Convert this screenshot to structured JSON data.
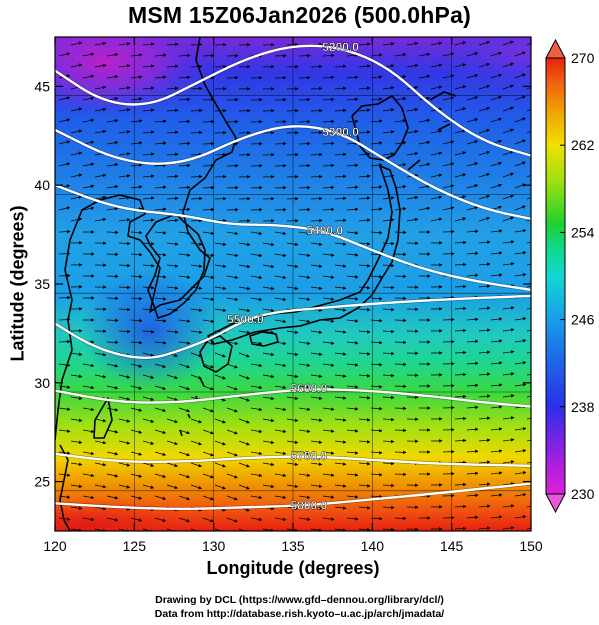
{
  "title": "MSM 15Z06Jan2026 (500.0hPa)",
  "chart_data": {
    "type": "heatmap",
    "title": "MSM 15Z06Jan2026 (500.0hPa)",
    "xlabel": "Longitude (degrees)",
    "ylabel": "Latitude  (degrees)",
    "xlim": [
      120,
      150
    ],
    "ylim": [
      22.5,
      47.5
    ],
    "x_ticks": [
      120,
      125,
      130,
      135,
      140,
      145,
      150
    ],
    "y_ticks": [
      25,
      30,
      35,
      40,
      45
    ],
    "grid": true,
    "colorbar": {
      "min": 230,
      "max": 270,
      "ticks": [
        230,
        238,
        246,
        254,
        262,
        270
      ],
      "colors": [
        "#e020d8",
        "#7a20e0",
        "#2a30e8",
        "#1e6ee8",
        "#10b8e0",
        "#10d8a8",
        "#20d030",
        "#a0e010",
        "#f0e000",
        "#f0a000",
        "#f05a10",
        "#e82010"
      ]
    },
    "contours": [
      {
        "label": "5200.0",
        "points": [
          [
            120,
            45.8
          ],
          [
            123,
            44.2
          ],
          [
            126,
            44.0
          ],
          [
            129,
            45.2
          ],
          [
            132,
            46.4
          ],
          [
            135,
            47.1
          ],
          [
            138,
            47.0
          ],
          [
            141,
            46.0
          ],
          [
            144,
            43.8
          ],
          [
            147,
            42.2
          ],
          [
            150,
            41.5
          ]
        ]
      },
      {
        "label": "5300.0",
        "points": [
          [
            120,
            42.8
          ],
          [
            124,
            41.2
          ],
          [
            128,
            41.0
          ],
          [
            132,
            42.5
          ],
          [
            135,
            43.1
          ],
          [
            138,
            42.7
          ],
          [
            141,
            41.2
          ],
          [
            144,
            39.8
          ],
          [
            147,
            38.8
          ],
          [
            150,
            38.3
          ]
        ]
      },
      {
        "label": "5400.0",
        "points": [
          [
            120,
            40.0
          ],
          [
            124,
            38.8
          ],
          [
            128,
            38.5
          ],
          [
            131,
            38.0
          ],
          [
            134,
            38.0
          ],
          [
            137,
            37.7
          ],
          [
            140,
            36.7
          ],
          [
            143,
            35.8
          ],
          [
            146,
            35.2
          ],
          [
            150,
            34.7
          ]
        ]
      },
      {
        "label": "5500.0",
        "points": [
          [
            120,
            33.0
          ],
          [
            122,
            32.0
          ],
          [
            124,
            31.4
          ],
          [
            126,
            31.2
          ],
          [
            127.8,
            31.6
          ],
          [
            130,
            32.3
          ],
          [
            132,
            33.2
          ],
          [
            134,
            33.6
          ],
          [
            137,
            33.8
          ],
          [
            140,
            34.0
          ],
          [
            144,
            34.2
          ],
          [
            150,
            34.4
          ]
        ]
      },
      {
        "label": "5600.0",
        "points": [
          [
            120,
            29.6
          ],
          [
            124,
            29.0
          ],
          [
            128,
            29.0
          ],
          [
            132,
            29.4
          ],
          [
            136,
            29.7
          ],
          [
            140,
            29.6
          ],
          [
            144,
            29.3
          ],
          [
            147,
            29.0
          ],
          [
            150,
            28.8
          ]
        ]
      },
      {
        "label": "5700.0",
        "points": [
          [
            120,
            26.4
          ],
          [
            124,
            26.0
          ],
          [
            128,
            26.0
          ],
          [
            132,
            26.2
          ],
          [
            136,
            26.3
          ],
          [
            140,
            26.1
          ],
          [
            144,
            25.9
          ],
          [
            150,
            25.8
          ]
        ]
      },
      {
        "label": "5800.0",
        "points": [
          [
            120,
            23.9
          ],
          [
            124,
            23.7
          ],
          [
            128,
            23.6
          ],
          [
            132,
            23.7
          ],
          [
            136,
            23.8
          ],
          [
            140,
            24.1
          ],
          [
            144,
            24.4
          ],
          [
            150,
            24.9
          ]
        ]
      }
    ]
  },
  "credits": {
    "line1": "Drawing by DCL (https://www.gfd–dennou.org/library/dcl/)",
    "line2": "Data from http://database.rish.kyoto–u.ac.jp/arch/jmadata/"
  }
}
